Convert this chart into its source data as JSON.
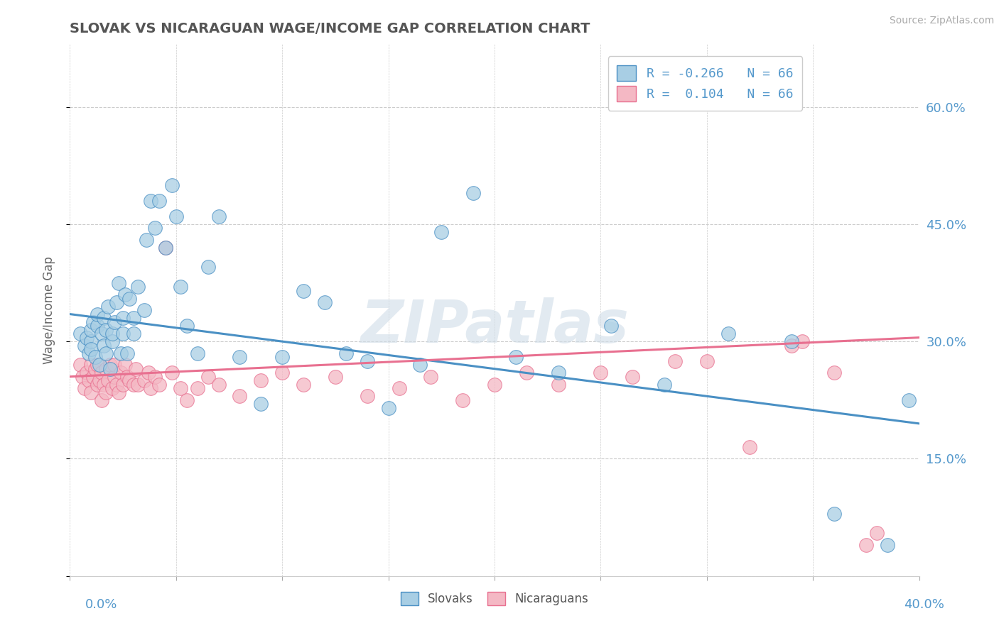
{
  "title": "SLOVAK VS NICARAGUAN WAGE/INCOME GAP CORRELATION CHART",
  "source": "Source: ZipAtlas.com",
  "ylabel": "Wage/Income Gap",
  "yticks": [
    0.0,
    0.15,
    0.3,
    0.45,
    0.6
  ],
  "ytick_labels": [
    "",
    "15.0%",
    "30.0%",
    "45.0%",
    "60.0%"
  ],
  "xmin": 0.0,
  "xmax": 0.4,
  "ymin": 0.0,
  "ymax": 0.68,
  "R_slovak": -0.266,
  "R_nicaraguan": 0.104,
  "N_slovak": 66,
  "N_nicaraguan": 66,
  "legend_slovak_label": "Slovaks",
  "legend_nicaraguan_label": "Nicaraguans",
  "blue_color": "#A8CEE4",
  "blue_line_color": "#4A90C4",
  "pink_color": "#F4B8C4",
  "pink_line_color": "#E87090",
  "title_color": "#555555",
  "axis_label_color": "#5599CC",
  "watermark": "ZIPatlas",
  "blue_line_x0": 0.0,
  "blue_line_y0": 0.335,
  "blue_line_x1": 0.4,
  "blue_line_y1": 0.195,
  "pink_line_x0": 0.0,
  "pink_line_y0": 0.255,
  "pink_line_x1": 0.4,
  "pink_line_y1": 0.305,
  "slovak_x": [
    0.005,
    0.007,
    0.008,
    0.009,
    0.01,
    0.01,
    0.01,
    0.011,
    0.012,
    0.013,
    0.013,
    0.014,
    0.015,
    0.016,
    0.016,
    0.017,
    0.017,
    0.018,
    0.019,
    0.02,
    0.02,
    0.021,
    0.022,
    0.023,
    0.024,
    0.025,
    0.025,
    0.026,
    0.027,
    0.028,
    0.03,
    0.03,
    0.032,
    0.035,
    0.036,
    0.038,
    0.04,
    0.042,
    0.045,
    0.048,
    0.05,
    0.052,
    0.055,
    0.06,
    0.065,
    0.07,
    0.08,
    0.09,
    0.1,
    0.11,
    0.12,
    0.13,
    0.14,
    0.15,
    0.165,
    0.175,
    0.19,
    0.21,
    0.23,
    0.255,
    0.28,
    0.31,
    0.34,
    0.36,
    0.385,
    0.395
  ],
  "slovak_y": [
    0.31,
    0.295,
    0.305,
    0.285,
    0.3,
    0.315,
    0.29,
    0.325,
    0.28,
    0.32,
    0.335,
    0.27,
    0.31,
    0.295,
    0.33,
    0.285,
    0.315,
    0.345,
    0.265,
    0.3,
    0.31,
    0.325,
    0.35,
    0.375,
    0.285,
    0.31,
    0.33,
    0.36,
    0.285,
    0.355,
    0.33,
    0.31,
    0.37,
    0.34,
    0.43,
    0.48,
    0.445,
    0.48,
    0.42,
    0.5,
    0.46,
    0.37,
    0.32,
    0.285,
    0.395,
    0.46,
    0.28,
    0.22,
    0.28,
    0.365,
    0.35,
    0.285,
    0.275,
    0.215,
    0.27,
    0.44,
    0.49,
    0.28,
    0.26,
    0.32,
    0.245,
    0.31,
    0.3,
    0.08,
    0.04,
    0.225
  ],
  "nicaraguan_x": [
    0.005,
    0.006,
    0.007,
    0.008,
    0.009,
    0.01,
    0.01,
    0.011,
    0.012,
    0.013,
    0.013,
    0.014,
    0.015,
    0.015,
    0.016,
    0.017,
    0.017,
    0.018,
    0.019,
    0.02,
    0.021,
    0.021,
    0.022,
    0.023,
    0.024,
    0.025,
    0.026,
    0.027,
    0.028,
    0.03,
    0.031,
    0.032,
    0.035,
    0.037,
    0.038,
    0.04,
    0.042,
    0.045,
    0.048,
    0.052,
    0.055,
    0.06,
    0.065,
    0.07,
    0.08,
    0.09,
    0.1,
    0.11,
    0.125,
    0.14,
    0.155,
    0.17,
    0.185,
    0.2,
    0.215,
    0.23,
    0.25,
    0.265,
    0.285,
    0.3,
    0.32,
    0.34,
    0.36,
    0.375,
    0.345,
    0.38
  ],
  "nicaraguan_y": [
    0.27,
    0.255,
    0.24,
    0.26,
    0.25,
    0.27,
    0.235,
    0.255,
    0.265,
    0.245,
    0.27,
    0.25,
    0.225,
    0.26,
    0.245,
    0.265,
    0.235,
    0.25,
    0.27,
    0.24,
    0.255,
    0.27,
    0.245,
    0.235,
    0.26,
    0.245,
    0.27,
    0.255,
    0.25,
    0.245,
    0.265,
    0.245,
    0.25,
    0.26,
    0.24,
    0.255,
    0.245,
    0.42,
    0.26,
    0.24,
    0.225,
    0.24,
    0.255,
    0.245,
    0.23,
    0.25,
    0.26,
    0.245,
    0.255,
    0.23,
    0.24,
    0.255,
    0.225,
    0.245,
    0.26,
    0.245,
    0.26,
    0.255,
    0.275,
    0.275,
    0.165,
    0.295,
    0.26,
    0.04,
    0.3,
    0.055
  ]
}
